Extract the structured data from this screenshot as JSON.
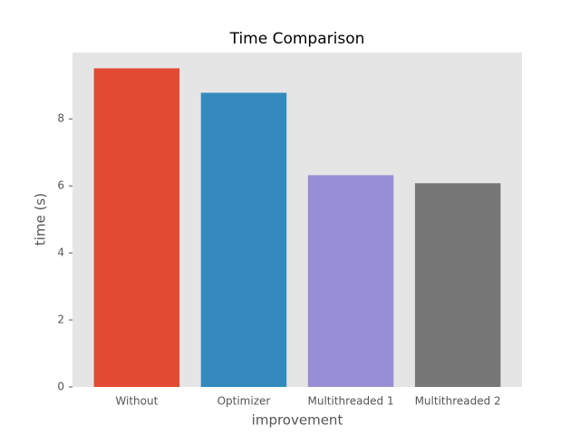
{
  "chart_data": {
    "type": "bar",
    "title": "Time Comparison",
    "xlabel": "improvement",
    "ylabel": "time (s)",
    "categories": [
      "Without",
      "Optimizer",
      "Multithreaded 1",
      "Multithreaded 2"
    ],
    "values": [
      9.51,
      8.78,
      6.32,
      6.08
    ],
    "colors": [
      "#E24A33",
      "#348ABD",
      "#988ED5",
      "#777777"
    ],
    "ylim": [
      0,
      9.98
    ],
    "yticks": [
      0,
      2,
      4,
      6,
      8
    ],
    "grid": false
  }
}
